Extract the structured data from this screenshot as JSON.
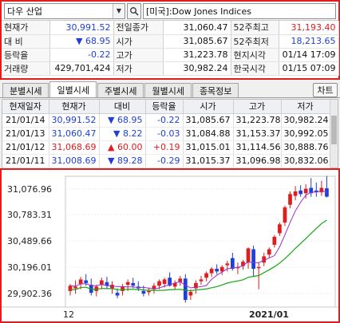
{
  "search": {
    "code": "다우 산업",
    "name": "[미국]:Dow Jones Indices"
  },
  "quote": [
    [
      {
        "t": "현재가",
        "c": "lbl"
      },
      {
        "t": "30,991.52",
        "c": "num blue"
      },
      {
        "t": "전일종가",
        "c": "lbl"
      },
      {
        "t": "31,060.47",
        "c": "num"
      },
      {
        "t": "52주최고",
        "c": "lbl"
      },
      {
        "t": "31,193.40",
        "c": "num red"
      }
    ],
    [
      {
        "t": "대 비",
        "c": "lbl"
      },
      {
        "t": "▼      68.95",
        "c": "num blue"
      },
      {
        "t": "시가",
        "c": "lbl"
      },
      {
        "t": "31,085.67",
        "c": "num"
      },
      {
        "t": "52주최저",
        "c": "lbl"
      },
      {
        "t": "18,213.65",
        "c": "num blue"
      }
    ],
    [
      {
        "t": "등락율",
        "c": "lbl"
      },
      {
        "t": "-0.22",
        "c": "num blue"
      },
      {
        "t": "고가",
        "c": "lbl"
      },
      {
        "t": "31,223.78",
        "c": "num"
      },
      {
        "t": "현지시각",
        "c": "lbl"
      },
      {
        "t": "01/14 17:09",
        "c": "num"
      }
    ],
    [
      {
        "t": "거래량",
        "c": "lbl"
      },
      {
        "t": "429,701,424",
        "c": "num"
      },
      {
        "t": "저가",
        "c": "lbl"
      },
      {
        "t": "30,982.24",
        "c": "num"
      },
      {
        "t": "한국시각",
        "c": "lbl"
      },
      {
        "t": "01/15 07:09",
        "c": "num"
      }
    ]
  ],
  "tabs": [
    "분별시세",
    "일별시세",
    "주별시세",
    "월별시세",
    "종목정보"
  ],
  "active_tab": 1,
  "chart_button": "차트",
  "daily": {
    "headers": [
      "현재일자",
      "현재가",
      "대비",
      "등락율",
      "시가",
      "고가",
      "저가"
    ],
    "rows": [
      [
        "21/01/14",
        "30,991.52",
        "▼      68.95",
        "-0.22",
        "31,085.67",
        "31,223.78",
        "30,982.24"
      ],
      [
        "21/01/13",
        "31,060.47",
        "▼        8.22",
        "-0.03",
        "31,084.88",
        "31,153.37",
        "30,992.05"
      ],
      [
        "21/01/12",
        "31,068.69",
        "▲      60.00",
        "+0.19",
        "31,015.01",
        "31,114.56",
        "30,888.76"
      ],
      [
        "21/01/11",
        "31,008.69",
        "▼      89.28",
        "-0.29",
        "31,015.37",
        "31,096.98",
        "30,832.06"
      ]
    ],
    "row_colors": [
      "blue",
      "blue",
      "red",
      "blue"
    ]
  },
  "chart_data": {
    "type": "candlestick",
    "y_ticks": [
      "31,076.96",
      "30,783.31",
      "30,489.66",
      "30,196.01",
      "29,902.36"
    ],
    "y_tick_values": [
      31076.96,
      30783.31,
      30489.66,
      30196.01,
      29902.36
    ],
    "x_labels": [
      "12",
      "2021/01"
    ],
    "colors": {
      "up": "#e01c1c",
      "down": "#1f3fd6",
      "ma_short": "#9b2fc9",
      "ma_long": "#13a80f"
    }
  }
}
